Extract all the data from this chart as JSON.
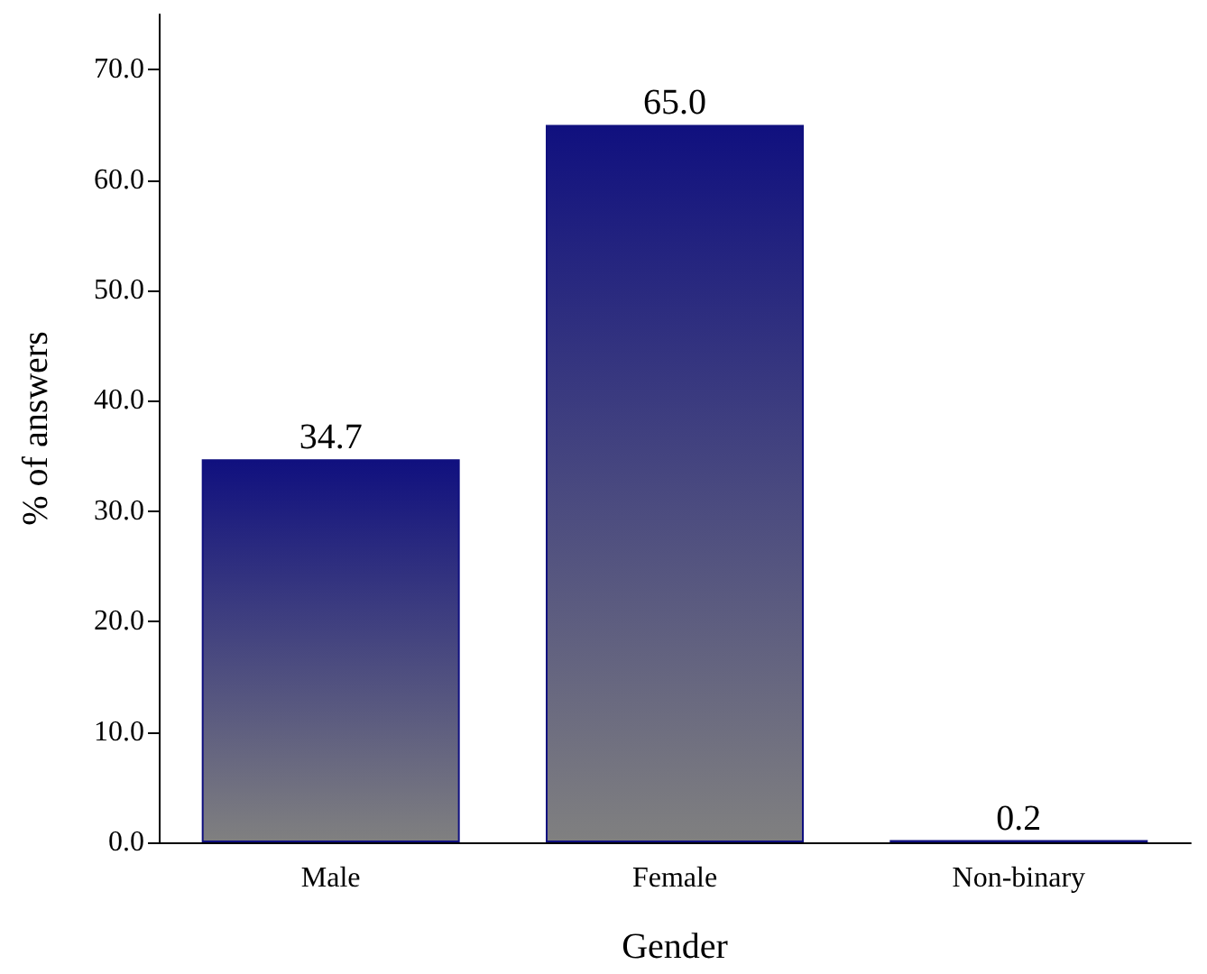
{
  "chart_data": {
    "type": "bar",
    "xlabel": "Gender",
    "ylabel": "% of answers",
    "categories": [
      "Male",
      "Female",
      "Non-binary"
    ],
    "values": [
      34.7,
      65.0,
      0.2
    ],
    "color": "#10107f",
    "value_labels": [
      "34.7",
      "65.0",
      "0.2"
    ],
    "ylim": [
      0,
      75
    ],
    "yticks": [
      {
        "value": 0,
        "label": "0.0"
      },
      {
        "value": 10,
        "label": "10.0"
      },
      {
        "value": 20,
        "label": "20.0"
      },
      {
        "value": 30,
        "label": "30.0"
      },
      {
        "value": 40,
        "label": "40.0"
      },
      {
        "value": 50,
        "label": "50.0"
      },
      {
        "value": 60,
        "label": "60.0"
      },
      {
        "value": 70,
        "label": "70.0"
      }
    ],
    "grid": false
  }
}
